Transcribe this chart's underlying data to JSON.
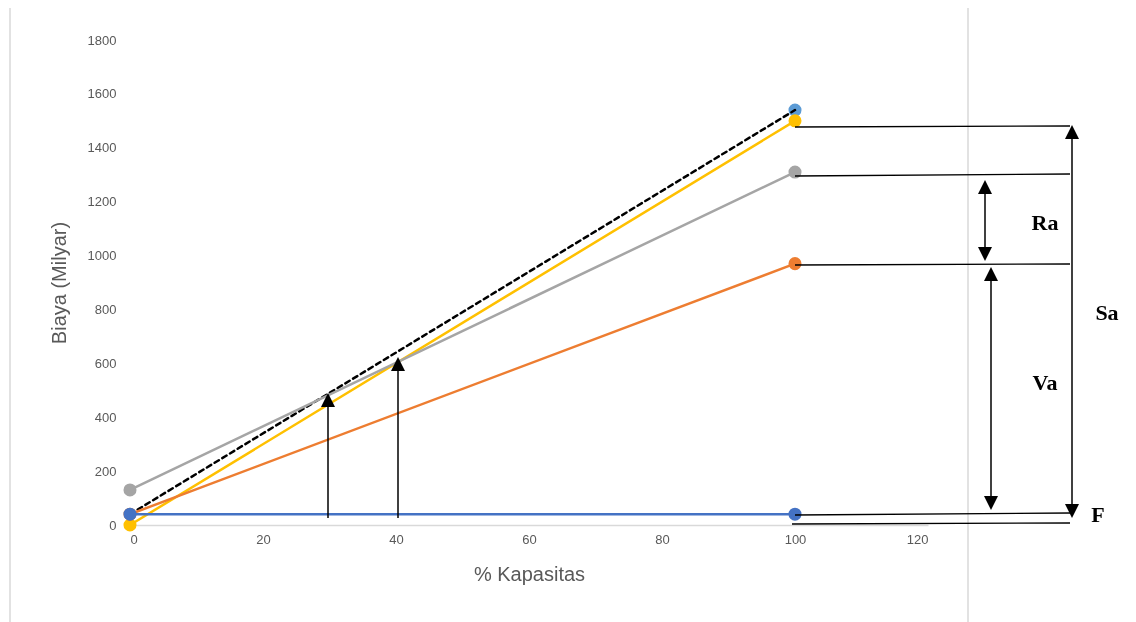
{
  "chart_data": {
    "type": "line",
    "xlabel": "% Kapasitas",
    "ylabel": "Biaya (Milyar)",
    "xlim": [
      0,
      120
    ],
    "xticks": [
      0,
      20,
      40,
      60,
      80,
      100,
      120
    ],
    "ylim": [
      0,
      1800
    ],
    "yticks": [
      0,
      200,
      400,
      600,
      800,
      1000,
      1200,
      1400,
      1600,
      1800
    ],
    "grid": false,
    "marker": "circle",
    "x": [
      0,
      100
    ],
    "series": [
      {
        "color": "#4472c4",
        "values": [
          40,
          40
        ]
      },
      {
        "color": "#ed7d31",
        "values": [
          40,
          970
        ]
      },
      {
        "color": "#a5a5a5",
        "values": [
          130,
          1310
        ]
      },
      {
        "color": "#ffc000",
        "values": [
          0,
          1500
        ]
      },
      {
        "color": "#000000",
        "values": [
          40,
          1540
        ],
        "line_style": "dashed",
        "marker": "none"
      },
      {
        "type": "scatter",
        "color": "#5b9bd5",
        "x": [
          100
        ],
        "values": [
          1540
        ]
      }
    ],
    "annotations": [
      "Ra",
      "Va",
      "Sa",
      {
        "text": "F",
        "x": 100,
        "y": 40
      }
    ]
  }
}
